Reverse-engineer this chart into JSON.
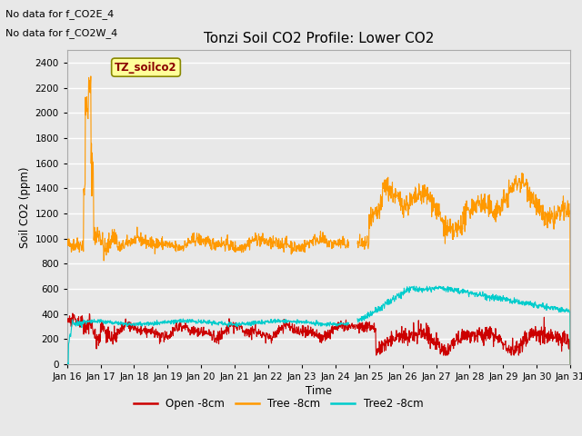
{
  "title": "Tonzi Soil CO2 Profile: Lower CO2",
  "xlabel": "Time",
  "ylabel": "Soil CO2 (ppm)",
  "annotation_lines": [
    "No data for f_CO2E_4",
    "No data for f_CO2W_4"
  ],
  "legend_box_text": "TZ_soilco2",
  "legend_box_color": "#ffff99",
  "legend_box_edge": "#999900",
  "ylim": [
    0,
    2500
  ],
  "yticks": [
    0,
    200,
    400,
    600,
    800,
    1000,
    1200,
    1400,
    1600,
    1800,
    2000,
    2200,
    2400
  ],
  "background_color": "#e8e8e8",
  "plot_bg_color": "#e8e8e8",
  "grid_color": "#ffffff",
  "colors": {
    "open": "#cc0000",
    "tree": "#ff9900",
    "tree2": "#00cccc"
  },
  "legend_labels": [
    "Open -8cm",
    "Tree -8cm",
    "Tree2 -8cm"
  ],
  "x_tick_labels": [
    "Jan 16",
    "Jan 17",
    "Jan 18",
    "Jan 19",
    "Jan 20",
    "Jan 21",
    "Jan 22",
    "Jan 23",
    "Jan 24",
    "Jan 25",
    "Jan 26",
    "Jan 27",
    "Jan 28",
    "Jan 29",
    "Jan 30",
    "Jan 31"
  ],
  "n_points": 1500
}
